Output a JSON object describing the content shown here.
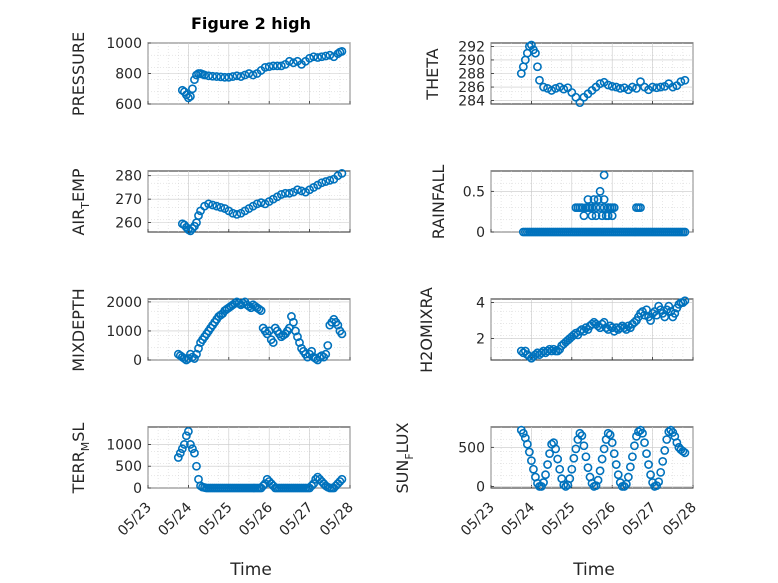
{
  "marker_color": "#0072bd",
  "chart_data": [
    {
      "type": "scatter",
      "title": "Figure 2 high",
      "ylabel": "PRESSURE",
      "xlabel": "",
      "ylim": [
        600,
        1000
      ],
      "yticks": [
        600,
        800,
        1000
      ],
      "xlim": [
        0,
        5
      ],
      "xticks": [],
      "grid": true,
      "x": [
        0.85,
        0.9,
        0.95,
        1.0,
        1.05,
        1.1,
        1.15,
        1.2,
        1.25,
        1.3,
        1.35,
        1.4,
        1.5,
        1.6,
        1.7,
        1.8,
        1.9,
        2.0,
        2.1,
        2.2,
        2.3,
        2.4,
        2.5,
        2.6,
        2.7,
        2.8,
        2.9,
        3.0,
        3.1,
        3.2,
        3.3,
        3.4,
        3.5,
        3.6,
        3.7,
        3.8,
        3.9,
        4.0,
        4.1,
        4.2,
        4.3,
        4.4,
        4.5,
        4.6,
        4.7,
        4.75,
        4.8
      ],
      "y": [
        690,
        680,
        660,
        640,
        650,
        700,
        760,
        790,
        800,
        800,
        795,
        790,
        785,
        782,
        780,
        778,
        775,
        775,
        780,
        785,
        780,
        790,
        800,
        790,
        800,
        820,
        840,
        845,
        850,
        850,
        850,
        860,
        880,
        870,
        880,
        860,
        880,
        900,
        910,
        905,
        910,
        915,
        920,
        910,
        930,
        940,
        945
      ]
    },
    {
      "type": "scatter",
      "ylabel": "THETA",
      "xlabel": "",
      "ylim": [
        283.5,
        292.5
      ],
      "yticks": [
        284,
        286,
        288,
        290,
        292
      ],
      "xlim": [
        0,
        5
      ],
      "xticks": [],
      "grid": true,
      "x": [
        0.75,
        0.8,
        0.85,
        0.9,
        0.95,
        1.0,
        1.05,
        1.1,
        1.15,
        1.2,
        1.3,
        1.4,
        1.5,
        1.6,
        1.7,
        1.8,
        1.9,
        2.0,
        2.1,
        2.2,
        2.3,
        2.4,
        2.5,
        2.6,
        2.7,
        2.8,
        2.9,
        3.0,
        3.1,
        3.2,
        3.3,
        3.4,
        3.5,
        3.6,
        3.7,
        3.8,
        3.9,
        4.0,
        4.1,
        4.2,
        4.3,
        4.4,
        4.5,
        4.6,
        4.7,
        4.8
      ],
      "y": [
        288,
        289,
        290,
        291,
        292,
        292.2,
        291.5,
        291,
        289,
        287,
        286,
        285.8,
        285.5,
        285.8,
        286,
        285.7,
        285.9,
        285.2,
        284.5,
        283.7,
        284.5,
        285,
        285.5,
        286,
        286.5,
        286.7,
        286.3,
        286.1,
        286,
        285.8,
        285.9,
        285.6,
        286,
        285.8,
        286.8,
        286,
        285.6,
        286,
        285.9,
        286,
        286.1,
        286.5,
        286,
        286.2,
        286.8,
        287
      ]
    },
    {
      "type": "scatter",
      "ylabel": "AIR_TEMP",
      "xlabel": "",
      "ylim": [
        256,
        282
      ],
      "yticks": [
        260,
        270,
        280
      ],
      "xlim": [
        0,
        5
      ],
      "xticks": [],
      "grid": true,
      "x": [
        0.85,
        0.9,
        0.95,
        1.0,
        1.05,
        1.1,
        1.15,
        1.2,
        1.25,
        1.3,
        1.4,
        1.5,
        1.6,
        1.7,
        1.8,
        1.9,
        2.0,
        2.1,
        2.2,
        2.3,
        2.4,
        2.5,
        2.6,
        2.7,
        2.8,
        2.9,
        3.0,
        3.1,
        3.2,
        3.3,
        3.4,
        3.5,
        3.6,
        3.7,
        3.8,
        3.9,
        4.0,
        4.1,
        4.2,
        4.3,
        4.4,
        4.5,
        4.6,
        4.7,
        4.8
      ],
      "y": [
        259.5,
        259,
        258,
        257,
        256.5,
        257.5,
        258.5,
        260,
        263,
        265,
        267,
        268,
        267.5,
        267,
        266.5,
        266,
        265,
        264,
        263.5,
        264,
        265,
        266,
        267,
        268,
        268.5,
        268,
        269,
        270,
        271,
        272,
        272.5,
        272.5,
        273,
        274,
        273.5,
        273,
        274,
        275,
        276,
        277,
        277.5,
        278,
        278.5,
        280,
        281
      ]
    },
    {
      "type": "scatter",
      "ylabel": "RAINFALL",
      "xlabel": "",
      "ylim": [
        0,
        0.75
      ],
      "yticks": [
        0,
        0.5
      ],
      "xlim": [
        0,
        5
      ],
      "xticks": [],
      "grid": true,
      "x": [
        0.8,
        0.85,
        0.9,
        0.95,
        1.0,
        1.05,
        1.1,
        1.15,
        1.2,
        1.25,
        1.3,
        1.35,
        1.4,
        1.45,
        1.5,
        1.55,
        1.6,
        1.65,
        1.7,
        1.75,
        1.8,
        1.85,
        1.9,
        1.95,
        2.0,
        2.05,
        2.1,
        2.15,
        2.2,
        2.25,
        2.3,
        2.35,
        2.4,
        2.45,
        2.5,
        2.55,
        2.6,
        2.65,
        2.7,
        2.75,
        2.8,
        2.85,
        2.9,
        2.95,
        3.0,
        3.05,
        3.1,
        3.15,
        3.2,
        3.25,
        3.3,
        3.35,
        3.4,
        3.45,
        3.5,
        3.55,
        3.6,
        3.65,
        3.7,
        3.75,
        3.8,
        3.85,
        3.9,
        3.95,
        4.0,
        4.05,
        4.1,
        4.15,
        4.2,
        4.25,
        4.3,
        4.35,
        4.4,
        4.45,
        4.5,
        4.55,
        4.6,
        4.65,
        4.7,
        4.75,
        4.8,
        2.1,
        2.15,
        2.2,
        2.25,
        2.3,
        2.35,
        2.4,
        2.45,
        2.5,
        2.55,
        2.6,
        2.65,
        2.7,
        2.75,
        2.8,
        2.85,
        2.9,
        2.95,
        3.0,
        3.05,
        2.4,
        2.5,
        2.6,
        2.7,
        2.8,
        2.9,
        2.8,
        2.9,
        3.0,
        3.6,
        3.65,
        3.7
      ],
      "y": [
        0,
        0,
        0,
        0,
        0,
        0,
        0,
        0,
        0,
        0,
        0,
        0,
        0,
        0,
        0,
        0,
        0,
        0,
        0,
        0,
        0,
        0,
        0,
        0,
        0,
        0,
        0,
        0,
        0,
        0,
        0,
        0,
        0,
        0,
        0,
        0,
        0,
        0,
        0,
        0,
        0,
        0,
        0,
        0,
        0,
        0,
        0,
        0,
        0,
        0,
        0,
        0,
        0,
        0,
        0,
        0,
        0,
        0,
        0,
        0,
        0,
        0,
        0,
        0,
        0,
        0,
        0,
        0,
        0,
        0,
        0,
        0,
        0,
        0,
        0,
        0,
        0,
        0,
        0,
        0,
        0,
        0.3,
        0.3,
        0.3,
        0.3,
        0.2,
        0.3,
        0.4,
        0.3,
        0.2,
        0.4,
        0.3,
        0.4,
        0.5,
        0.2,
        0.3,
        0.2,
        0.3,
        0.3,
        0.2,
        0.3,
        0.3,
        0.3,
        0.2,
        0.3,
        0.4,
        0.3,
        0.7,
        0.2,
        0.3,
        0.3,
        0.3,
        0.3
      ]
    },
    {
      "type": "scatter",
      "ylabel": "MIXDEPTH",
      "xlabel": "",
      "ylim": [
        0,
        2100
      ],
      "yticks": [
        0,
        1000,
        2000
      ],
      "xlim": [
        0,
        5
      ],
      "xticks": [],
      "grid": true,
      "x": [
        0.75,
        0.8,
        0.85,
        0.9,
        0.95,
        1.0,
        1.05,
        1.1,
        1.15,
        1.2,
        1.25,
        1.3,
        1.35,
        1.4,
        1.45,
        1.5,
        1.55,
        1.6,
        1.65,
        1.7,
        1.75,
        1.8,
        1.85,
        1.9,
        1.95,
        2.0,
        2.05,
        2.1,
        2.15,
        2.2,
        2.25,
        2.3,
        2.35,
        2.4,
        2.45,
        2.5,
        2.55,
        2.6,
        2.65,
        2.7,
        2.75,
        2.8,
        2.85,
        2.9,
        2.95,
        3.0,
        3.05,
        3.1,
        3.15,
        3.2,
        3.25,
        3.3,
        3.35,
        3.4,
        3.45,
        3.5,
        3.55,
        3.6,
        3.65,
        3.7,
        3.75,
        3.8,
        3.85,
        3.9,
        3.95,
        4.0,
        4.05,
        4.1,
        4.15,
        4.2,
        4.25,
        4.3,
        4.35,
        4.4,
        4.45,
        4.5,
        4.55,
        4.6,
        4.65,
        4.7,
        4.75,
        4.8
      ],
      "y": [
        200,
        150,
        100,
        50,
        0,
        50,
        200,
        100,
        50,
        200,
        400,
        600,
        700,
        800,
        900,
        1000,
        1100,
        1200,
        1300,
        1400,
        1500,
        1550,
        1600,
        1700,
        1750,
        1800,
        1850,
        1900,
        1950,
        2000,
        1950,
        1900,
        1950,
        2000,
        1900,
        1850,
        1800,
        1900,
        1850,
        1800,
        1750,
        1700,
        1100,
        1000,
        900,
        1000,
        700,
        600,
        1100,
        1000,
        900,
        800,
        850,
        900,
        1000,
        1100,
        1500,
        1300,
        1000,
        800,
        600,
        400,
        300,
        200,
        100,
        200,
        300,
        100,
        50,
        0,
        100,
        150,
        100,
        200,
        500,
        1200,
        1300,
        1400,
        1300,
        1200,
        1000,
        900
      ]
    },
    {
      "type": "scatter",
      "ylabel": "H2OMIXRA",
      "xlabel": "",
      "ylim": [
        0.8,
        4.2
      ],
      "yticks": [
        2,
        4
      ],
      "xlim": [
        0,
        5
      ],
      "xticks": [],
      "grid": true,
      "x": [
        0.75,
        0.8,
        0.85,
        0.9,
        0.95,
        1.0,
        1.05,
        1.1,
        1.15,
        1.2,
        1.25,
        1.3,
        1.35,
        1.4,
        1.45,
        1.5,
        1.55,
        1.6,
        1.65,
        1.7,
        1.75,
        1.8,
        1.85,
        1.9,
        1.95,
        2.0,
        2.05,
        2.1,
        2.15,
        2.2,
        2.25,
        2.3,
        2.35,
        2.4,
        2.45,
        2.5,
        2.55,
        2.6,
        2.65,
        2.7,
        2.75,
        2.8,
        2.85,
        2.9,
        2.95,
        3.0,
        3.05,
        3.1,
        3.15,
        3.2,
        3.25,
        3.3,
        3.35,
        3.4,
        3.45,
        3.5,
        3.55,
        3.6,
        3.65,
        3.7,
        3.75,
        3.8,
        3.85,
        3.9,
        3.95,
        4.0,
        4.05,
        4.1,
        4.15,
        4.2,
        4.25,
        4.3,
        4.35,
        4.4,
        4.45,
        4.5,
        4.55,
        4.6,
        4.65,
        4.7,
        4.75,
        4.8
      ],
      "y": [
        1.3,
        1.2,
        1.3,
        1.1,
        1.0,
        0.9,
        1.0,
        1.1,
        1.2,
        1.1,
        1.2,
        1.3,
        1.2,
        1.3,
        1.4,
        1.3,
        1.4,
        1.3,
        1.3,
        1.4,
        1.6,
        1.7,
        1.8,
        1.9,
        2.0,
        2.1,
        2.2,
        2.3,
        2.2,
        2.4,
        2.5,
        2.4,
        2.6,
        2.5,
        2.7,
        2.8,
        2.9,
        2.8,
        2.7,
        2.6,
        2.8,
        2.9,
        2.6,
        2.5,
        2.7,
        2.6,
        2.4,
        2.6,
        2.5,
        2.6,
        2.7,
        2.6,
        2.5,
        2.7,
        2.6,
        2.8,
        2.9,
        3.0,
        3.2,
        3.4,
        3.5,
        3.3,
        3.6,
        3.2,
        3.0,
        3.4,
        3.5,
        3.3,
        3.8,
        3.6,
        3.4,
        3.2,
        3.6,
        3.8,
        3.5,
        3.2,
        3.4,
        3.7,
        3.9,
        4.0,
        4.0,
        4.1
      ]
    },
    {
      "type": "scatter",
      "ylabel": "TERR_MSL",
      "xlabel": "Time",
      "ylim": [
        0,
        1400
      ],
      "yticks": [
        0,
        500,
        1000
      ],
      "xlim": [
        0,
        5
      ],
      "xticks": [
        "05/23",
        "05/24",
        "05/25",
        "05/26",
        "05/27",
        "05/28"
      ],
      "grid": true,
      "x": [
        0.75,
        0.8,
        0.85,
        0.9,
        0.95,
        1.0,
        1.05,
        1.1,
        1.15,
        1.2,
        1.25,
        1.3,
        1.35,
        1.4,
        1.45,
        1.5,
        1.55,
        1.6,
        1.65,
        1.7,
        1.75,
        1.8,
        1.85,
        1.9,
        1.95,
        2.0,
        2.05,
        2.1,
        2.15,
        2.2,
        2.25,
        2.3,
        2.35,
        2.4,
        2.45,
        2.5,
        2.55,
        2.6,
        2.65,
        2.7,
        2.75,
        2.8,
        2.85,
        2.9,
        2.95,
        3.0,
        3.05,
        3.1,
        3.15,
        3.2,
        3.25,
        3.3,
        3.35,
        3.4,
        3.45,
        3.5,
        3.55,
        3.6,
        3.65,
        3.7,
        3.75,
        3.8,
        3.85,
        3.9,
        3.95,
        4.0,
        4.05,
        4.1,
        4.15,
        4.2,
        4.25,
        4.3,
        4.35,
        4.4,
        4.45,
        4.5,
        4.55,
        4.6,
        4.65,
        4.7,
        4.75,
        4.8
      ],
      "y": [
        700,
        800,
        900,
        1000,
        1200,
        1300,
        1000,
        900,
        800,
        500,
        200,
        50,
        20,
        10,
        0,
        0,
        0,
        0,
        0,
        0,
        0,
        0,
        0,
        0,
        0,
        0,
        0,
        0,
        0,
        0,
        0,
        0,
        0,
        0,
        0,
        0,
        0,
        0,
        0,
        0,
        0,
        0,
        50,
        100,
        200,
        150,
        100,
        50,
        0,
        0,
        0,
        0,
        0,
        0,
        0,
        0,
        0,
        0,
        0,
        0,
        0,
        0,
        0,
        0,
        0,
        0,
        50,
        100,
        200,
        250,
        200,
        150,
        100,
        50,
        20,
        0,
        0,
        0,
        50,
        100,
        150,
        200
      ]
    },
    {
      "type": "scatter",
      "ylabel": "SUN_FLUX",
      "xlabel": "Time",
      "ylim": [
        -20,
        760
      ],
      "yticks": [
        0,
        500
      ],
      "xlim": [
        0,
        5
      ],
      "xticks": [
        "05/23",
        "05/24",
        "05/25",
        "05/26",
        "05/27",
        "05/28"
      ],
      "grid": true,
      "x": [
        0.75,
        0.8,
        0.85,
        0.9,
        0.95,
        1.0,
        1.05,
        1.1,
        1.15,
        1.2,
        1.25,
        1.3,
        1.35,
        1.4,
        1.45,
        1.5,
        1.55,
        1.6,
        1.65,
        1.7,
        1.75,
        1.8,
        1.85,
        1.9,
        1.95,
        2.0,
        2.05,
        2.1,
        2.15,
        2.2,
        2.25,
        2.3,
        2.35,
        2.4,
        2.45,
        2.5,
        2.55,
        2.6,
        2.65,
        2.7,
        2.75,
        2.8,
        2.85,
        2.9,
        2.95,
        3.0,
        3.05,
        3.1,
        3.15,
        3.2,
        3.25,
        3.3,
        3.35,
        3.4,
        3.45,
        3.5,
        3.55,
        3.6,
        3.65,
        3.7,
        3.75,
        3.8,
        3.85,
        3.9,
        3.95,
        4.0,
        4.05,
        4.1,
        4.15,
        4.2,
        4.25,
        4.3,
        4.35,
        4.4,
        4.45,
        4.5,
        4.55,
        4.6,
        4.65,
        4.7,
        4.75,
        4.8
      ],
      "y": [
        720,
        680,
        620,
        540,
        440,
        330,
        220,
        120,
        40,
        0,
        0,
        50,
        150,
        280,
        420,
        540,
        560,
        480,
        350,
        220,
        100,
        20,
        0,
        20,
        100,
        220,
        360,
        480,
        600,
        680,
        650,
        520,
        380,
        240,
        120,
        40,
        0,
        10,
        80,
        200,
        350,
        480,
        600,
        680,
        660,
        560,
        420,
        280,
        150,
        50,
        0,
        0,
        30,
        120,
        250,
        380,
        520,
        640,
        700,
        720,
        680,
        560,
        420,
        280,
        150,
        50,
        0,
        10,
        60,
        180,
        320,
        460,
        600,
        700,
        720,
        690,
        640,
        560,
        500,
        470,
        450,
        430
      ]
    }
  ]
}
